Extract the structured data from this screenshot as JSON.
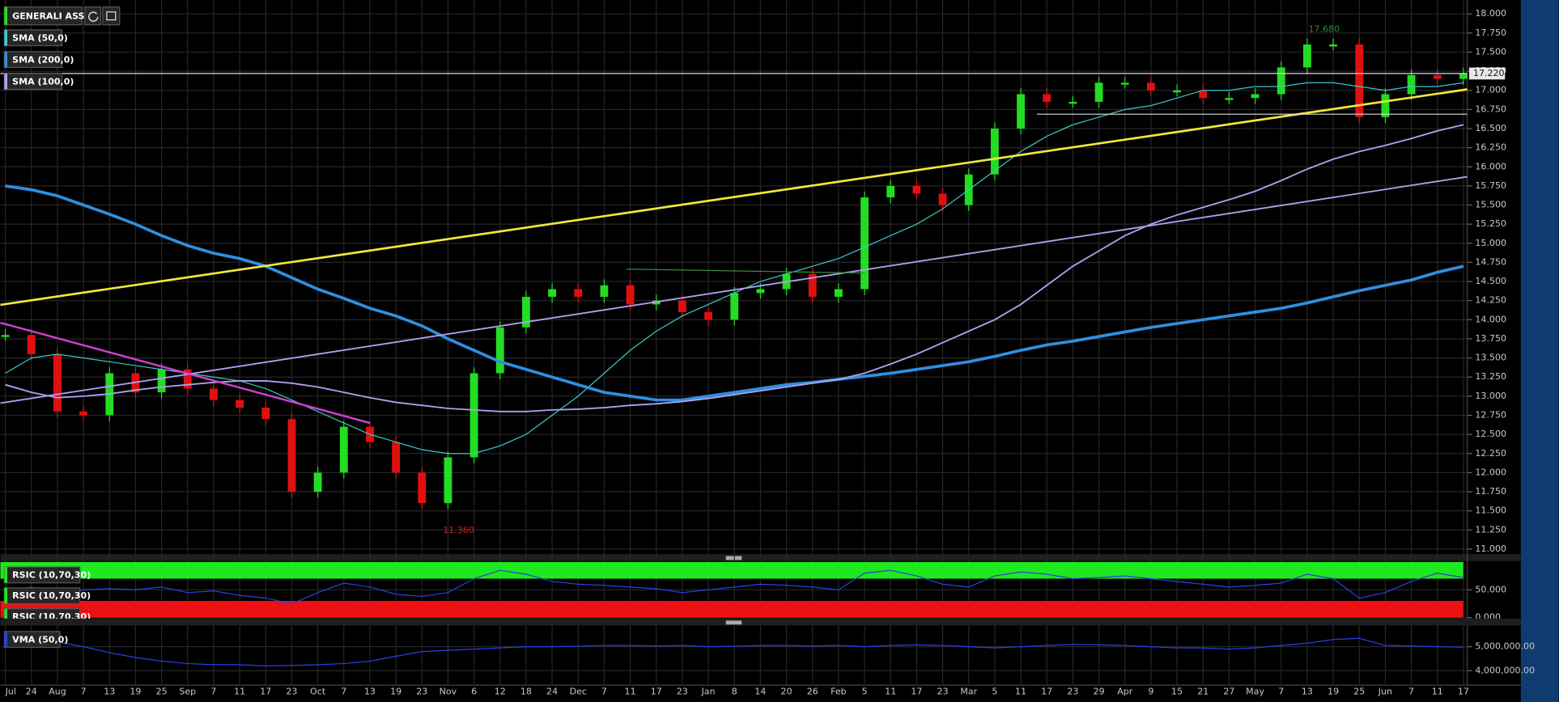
{
  "chart_data": [
    {
      "type": "candlestick",
      "title": "GENERALI ASS",
      "categories": [
        "Jul",
        "24",
        "Aug",
        "7",
        "13",
        "19",
        "25",
        "Sep",
        "7",
        "11",
        "17",
        "23",
        "Oct",
        "7",
        "13",
        "19",
        "23",
        "Nov",
        "6",
        "12",
        "18",
        "24",
        "Dec",
        "7",
        "11",
        "17",
        "23",
        "Jan",
        "8",
        "14",
        "20",
        "26",
        "Feb",
        "5",
        "11",
        "17",
        "23",
        "Mar",
        "5",
        "11",
        "17",
        "23",
        "29",
        "Apr",
        "9",
        "15",
        "21",
        "27",
        "May",
        "7",
        "13",
        "19",
        "25",
        "Jun",
        "7",
        "11",
        "17"
      ],
      "values": [
        13.8,
        13.55,
        12.8,
        12.75,
        13.3,
        13.05,
        13.35,
        13.1,
        12.95,
        12.85,
        12.7,
        11.75,
        12.0,
        12.6,
        12.4,
        12.0,
        11.6,
        12.2,
        13.3,
        13.9,
        14.3,
        14.4,
        14.3,
        14.45,
        14.2,
        14.25,
        14.1,
        14.0,
        14.35,
        14.4,
        14.6,
        14.3,
        14.4,
        15.6,
        15.75,
        15.65,
        15.5,
        15.9,
        16.5,
        16.95,
        16.85,
        16.85,
        17.1,
        17.1,
        17.0,
        17.0,
        16.9,
        16.9,
        16.95,
        17.3,
        17.6,
        17.6,
        16.65,
        16.95,
        17.2,
        17.15,
        17.22
      ],
      "up_color": "#22dd22",
      "down_color": "#e01010",
      "series": [
        {
          "name": "SMA (50,0)",
          "color": "#3fc6c6",
          "width": 1,
          "values": [
            13.3,
            13.5,
            13.55,
            13.5,
            13.45,
            13.4,
            13.35,
            13.3,
            13.25,
            13.2,
            13.1,
            12.95,
            12.8,
            12.65,
            12.5,
            12.4,
            12.3,
            12.25,
            12.25,
            12.35,
            12.5,
            12.75,
            13.0,
            13.3,
            13.6,
            13.85,
            14.05,
            14.2,
            14.35,
            14.5,
            14.6,
            14.7,
            14.8,
            14.95,
            15.1,
            15.25,
            15.45,
            15.7,
            15.95,
            16.2,
            16.4,
            16.55,
            16.65,
            16.75,
            16.8,
            16.9,
            17.0,
            17.0,
            17.05,
            17.05,
            17.1,
            17.1,
            17.05,
            17.0,
            17.05,
            17.05,
            17.1
          ]
        },
        {
          "name": "SMA (200,0)",
          "color": "#2f8fe0",
          "width": 3,
          "values": [
            15.75,
            15.7,
            15.62,
            15.5,
            15.38,
            15.25,
            15.1,
            14.97,
            14.87,
            14.8,
            14.7,
            14.55,
            14.4,
            14.28,
            14.15,
            14.05,
            13.92,
            13.75,
            13.6,
            13.45,
            13.35,
            13.25,
            13.15,
            13.05,
            13.0,
            12.95,
            12.95,
            13.0,
            13.05,
            13.1,
            13.15,
            13.18,
            13.22,
            13.26,
            13.3,
            13.35,
            13.4,
            13.45,
            13.52,
            13.6,
            13.67,
            13.72,
            13.78,
            13.84,
            13.9,
            13.95,
            14.0,
            14.05,
            14.1,
            14.15,
            14.22,
            14.3,
            14.38,
            14.45,
            14.52,
            14.62,
            14.7
          ]
        },
        {
          "name": "SMA (100,0)",
          "color": "#b0a0f0",
          "width": 1.5,
          "values": [
            13.15,
            13.05,
            12.98,
            13.0,
            13.03,
            13.08,
            13.12,
            13.15,
            13.18,
            13.2,
            13.2,
            13.17,
            13.12,
            13.05,
            12.98,
            12.92,
            12.88,
            12.84,
            12.82,
            12.8,
            12.8,
            12.82,
            12.83,
            12.85,
            12.88,
            12.9,
            12.93,
            12.97,
            13.02,
            13.07,
            13.12,
            13.17,
            13.22,
            13.3,
            13.42,
            13.55,
            13.7,
            13.85,
            14.0,
            14.2,
            14.45,
            14.7,
            14.9,
            15.1,
            15.25,
            15.37,
            15.47,
            15.57,
            15.68,
            15.82,
            15.97,
            16.1,
            16.2,
            16.28,
            16.37,
            16.47,
            16.55
          ]
        }
      ],
      "last_price": {
        "value": 17.22,
        "label": "17.220"
      },
      "annotations": [
        {
          "label": "17.680",
          "value": 17.68,
          "color": "#2e8b2e"
        },
        {
          "label": "11.360",
          "value": 11.36,
          "color": "#cc2020"
        }
      ],
      "ylim": [
        11,
        18
      ],
      "yticks": [
        {
          "value": 11,
          "label": "11.000"
        },
        {
          "value": 11.25,
          "label": "11.250"
        },
        {
          "value": 11.5,
          "label": "11.500"
        },
        {
          "value": 11.75,
          "label": "11.750"
        },
        {
          "value": 12,
          "label": "12.000"
        },
        {
          "value": 12.25,
          "label": "12.250"
        },
        {
          "value": 12.5,
          "label": "12.500"
        },
        {
          "value": 12.75,
          "label": "12.750"
        },
        {
          "value": 13,
          "label": "13.000"
        },
        {
          "value": 13.25,
          "label": "13.250"
        },
        {
          "value": 13.5,
          "label": "13.500"
        },
        {
          "value": 13.75,
          "label": "13.750"
        },
        {
          "value": 14,
          "label": "14.000"
        },
        {
          "value": 14.25,
          "label": "14.250"
        },
        {
          "value": 14.5,
          "label": "14.500"
        },
        {
          "value": 14.75,
          "label": "14.750"
        },
        {
          "value": 15,
          "label": "15.000"
        },
        {
          "value": 15.25,
          "label": "15.250"
        },
        {
          "value": 15.5,
          "label": "15.500"
        },
        {
          "value": 15.75,
          "label": "15.750"
        },
        {
          "value": 16,
          "label": "16.000"
        },
        {
          "value": 16.25,
          "label": "16.250"
        },
        {
          "value": 16.5,
          "label": "16.500"
        },
        {
          "value": 16.75,
          "label": "16.750"
        },
        {
          "value": 17,
          "label": "17.000"
        },
        {
          "value": 17.25,
          "label": "17.250"
        },
        {
          "value": 17.5,
          "label": "17.500"
        },
        {
          "value": 17.75,
          "label": "17.750"
        },
        {
          "value": 18,
          "label": "18.000"
        }
      ],
      "grid": true
    },
    {
      "type": "line",
      "bands": {
        "upper": 70,
        "lower": 30,
        "upper_color": "#1ee81e",
        "lower_color": "#ee1111"
      },
      "series": [
        {
          "name": "RSIC (10,70,30)",
          "color": "#2a3fe0",
          "values": [
            45,
            55,
            40,
            50,
            52,
            50,
            55,
            45,
            48,
            40,
            35,
            25,
            45,
            62,
            55,
            42,
            38,
            45,
            70,
            85,
            78,
            65,
            60,
            58,
            55,
            52,
            45,
            50,
            55,
            60,
            58,
            55,
            50,
            80,
            85,
            75,
            60,
            55,
            75,
            82,
            78,
            70,
            72,
            75,
            70,
            65,
            60,
            55,
            58,
            62,
            78,
            70,
            35,
            45,
            65,
            80,
            72
          ]
        }
      ],
      "ylim": [
        0,
        100
      ],
      "yticks": [
        {
          "value": 0,
          "label": "0.000"
        },
        {
          "value": 50,
          "label": "50.000"
        }
      ]
    },
    {
      "type": "line",
      "series": [
        {
          "name": "VMA (50,0)",
          "color": "#2a3fe0",
          "values": [
            5300000,
            5300000,
            5200000,
            5000000,
            4750000,
            4550000,
            4400000,
            4300000,
            4250000,
            4250000,
            4200000,
            4220000,
            4250000,
            4300000,
            4400000,
            4600000,
            4800000,
            4850000,
            4900000,
            4950000,
            5000000,
            5000000,
            5020000,
            5050000,
            5050000,
            5030000,
            5050000,
            5000000,
            5020000,
            5050000,
            5050000,
            5030000,
            5050000,
            5000000,
            5050000,
            5080000,
            5050000,
            5000000,
            4950000,
            5000000,
            5050000,
            5100000,
            5080000,
            5050000,
            5000000,
            4950000,
            4950000,
            4900000,
            4950000,
            5050000,
            5150000,
            5300000,
            5350000,
            5050000,
            5030000,
            5000000,
            4980000
          ]
        }
      ],
      "ylim": [
        3400000,
        5800000
      ],
      "yticks": [
        {
          "value": 4000000,
          "label": "4,000,000.00"
        },
        {
          "value": 5000000,
          "label": "5,000,000.00"
        }
      ]
    }
  ]
}
